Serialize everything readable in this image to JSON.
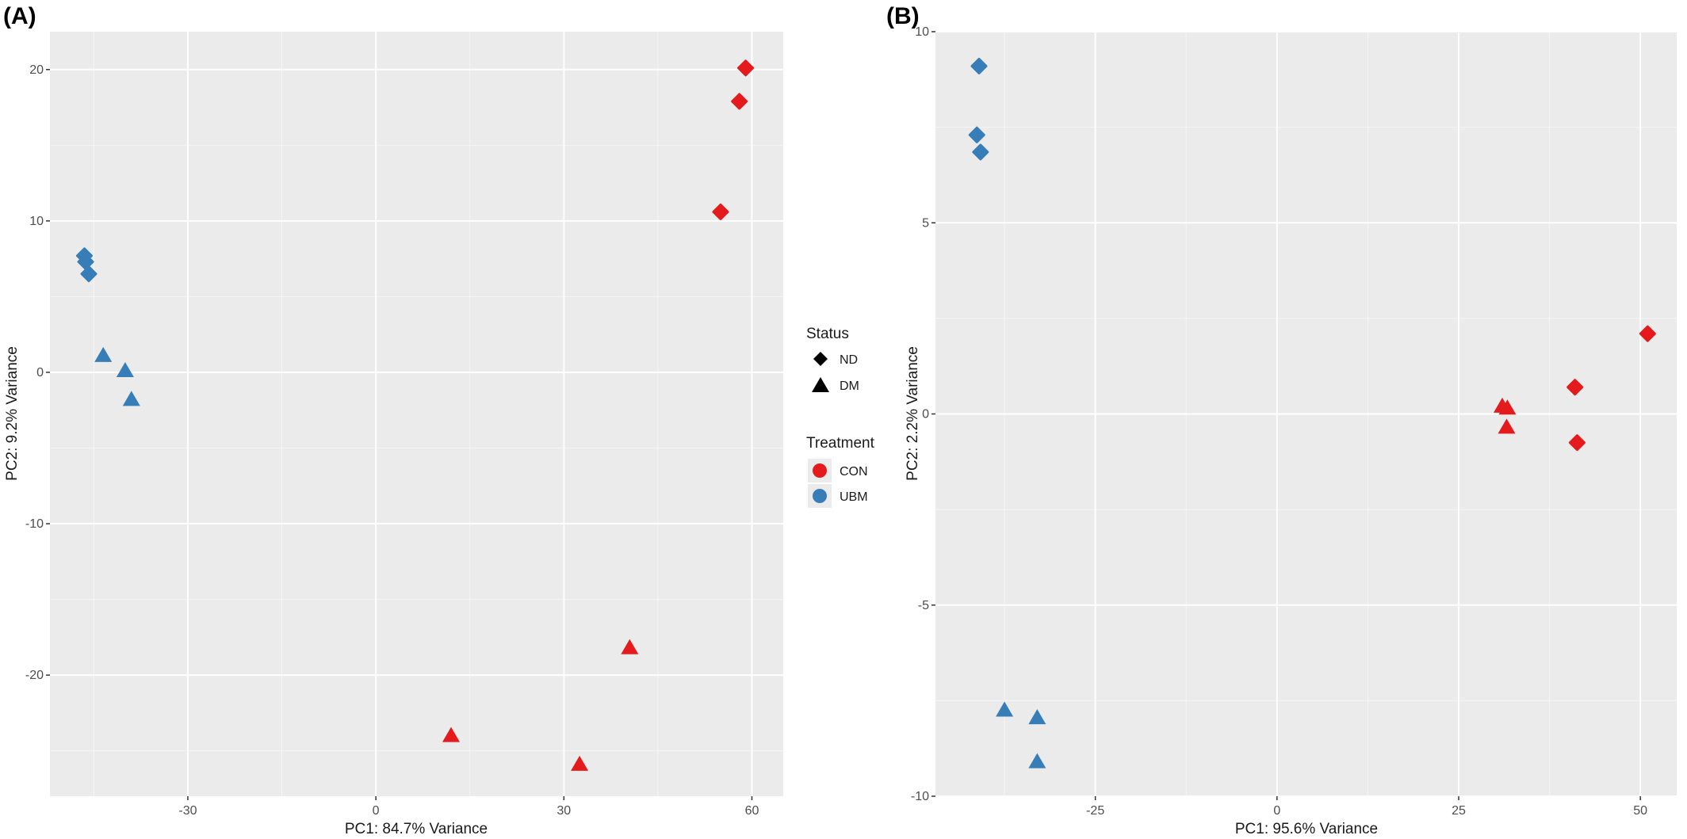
{
  "colors": {
    "panel_bg": "#ebebeb",
    "grid_major": "#ffffff",
    "grid_minor": "#f5f5f5",
    "CON": "#e41a1c",
    "UBM": "#377eb8"
  },
  "legend": {
    "status_title": "Status",
    "status_items": [
      {
        "label": "ND",
        "shape": "diamond"
      },
      {
        "label": "DM",
        "shape": "triangle"
      }
    ],
    "treatment_title": "Treatment",
    "treatment_items": [
      {
        "label": "CON",
        "color_key": "CON"
      },
      {
        "label": "UBM",
        "color_key": "UBM"
      }
    ],
    "placement": "center, between panels"
  },
  "chart_data": [
    {
      "type": "scatter",
      "panel": "(A)",
      "xlabel": "PC1: 84.7% Variance",
      "ylabel": "PC2: 9.2% Variance",
      "xlim": [
        -52,
        65
      ],
      "ylim": [
        -28,
        22.5
      ],
      "xticks": [
        -30,
        0,
        30,
        60
      ],
      "xtick_labels": [
        "-30",
        "0",
        "30",
        "60"
      ],
      "yticks": [
        -20,
        -10,
        0,
        10,
        20
      ],
      "ytick_labels": [
        "-20",
        "-10",
        "0",
        "10",
        "20"
      ],
      "grid": true,
      "points": [
        {
          "x": 59,
          "y": 20.1,
          "status": "ND",
          "treatment": "CON"
        },
        {
          "x": 58,
          "y": 17.9,
          "status": "ND",
          "treatment": "CON"
        },
        {
          "x": 55,
          "y": 10.6,
          "status": "ND",
          "treatment": "CON"
        },
        {
          "x": -46.5,
          "y": 7.7,
          "status": "ND",
          "treatment": "UBM"
        },
        {
          "x": -46.3,
          "y": 7.3,
          "status": "ND",
          "treatment": "UBM"
        },
        {
          "x": -45.8,
          "y": 6.5,
          "status": "ND",
          "treatment": "UBM"
        },
        {
          "x": -43.5,
          "y": 1.1,
          "status": "DM",
          "treatment": "UBM"
        },
        {
          "x": -40,
          "y": 0.1,
          "status": "DM",
          "treatment": "UBM"
        },
        {
          "x": -39,
          "y": -1.8,
          "status": "DM",
          "treatment": "UBM"
        },
        {
          "x": 40.5,
          "y": -18.2,
          "status": "DM",
          "treatment": "CON"
        },
        {
          "x": 12,
          "y": -24,
          "status": "DM",
          "treatment": "CON"
        },
        {
          "x": 32.5,
          "y": -25.9,
          "status": "DM",
          "treatment": "CON"
        }
      ]
    },
    {
      "type": "scatter",
      "panel": "(B)",
      "xlabel": "PC1: 95.6% Variance",
      "ylabel": "PC2: 2.2% Variance",
      "xlim": [
        -47,
        55
      ],
      "ylim": [
        -10,
        10
      ],
      "xticks": [
        -25,
        0,
        25,
        50
      ],
      "xtick_labels": [
        "-25",
        "0",
        "25",
        "50"
      ],
      "yticks": [
        -10,
        -5,
        0,
        5,
        10
      ],
      "ytick_labels": [
        "-10",
        "-5",
        "0",
        "5",
        "10"
      ],
      "grid": true,
      "points": [
        {
          "x": -41,
          "y": 9.1,
          "status": "ND",
          "treatment": "UBM"
        },
        {
          "x": -41.3,
          "y": 7.3,
          "status": "ND",
          "treatment": "UBM"
        },
        {
          "x": -40.8,
          "y": 6.85,
          "status": "ND",
          "treatment": "UBM"
        },
        {
          "x": 51,
          "y": 2.1,
          "status": "ND",
          "treatment": "CON"
        },
        {
          "x": 41,
          "y": 0.7,
          "status": "ND",
          "treatment": "CON"
        },
        {
          "x": 41.3,
          "y": -0.75,
          "status": "ND",
          "treatment": "CON"
        },
        {
          "x": 31,
          "y": 0.2,
          "status": "DM",
          "treatment": "CON"
        },
        {
          "x": 31.7,
          "y": 0.15,
          "status": "DM",
          "treatment": "CON"
        },
        {
          "x": 31.6,
          "y": -0.35,
          "status": "DM",
          "treatment": "CON"
        },
        {
          "x": -37.5,
          "y": -7.75,
          "status": "DM",
          "treatment": "UBM"
        },
        {
          "x": -33,
          "y": -7.95,
          "status": "DM",
          "treatment": "UBM"
        },
        {
          "x": -33,
          "y": -9.1,
          "status": "DM",
          "treatment": "UBM"
        }
      ]
    }
  ]
}
